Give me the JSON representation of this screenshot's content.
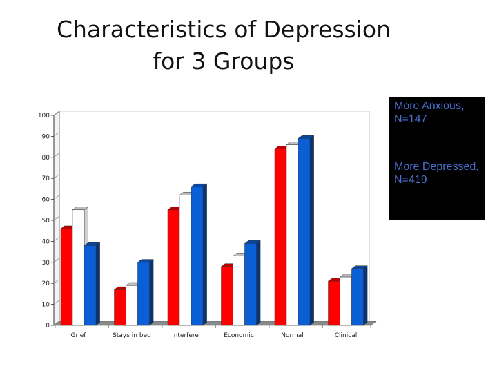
{
  "chart_data": {
    "type": "bar",
    "title_lines": [
      "Characteristics of Depression",
      "for 3 Groups"
    ],
    "categories": [
      "Grief",
      "Stays in bed",
      "Interfere",
      "Economic",
      "Normal",
      "Clinical"
    ],
    "series": [
      {
        "name": "More Anxious, N=147",
        "color": "#ff0000",
        "values": [
          46,
          17,
          55,
          28,
          84,
          21
        ]
      },
      {
        "name": "",
        "color": "#ffffff",
        "values": [
          55,
          19,
          62,
          33,
          86,
          23
        ]
      },
      {
        "name": "More Depressed, N=419",
        "color": "#0a5fd6",
        "values": [
          38,
          30,
          66,
          39,
          89,
          27
        ]
      }
    ],
    "yticks": [
      0,
      10,
      20,
      30,
      40,
      50,
      60,
      70,
      80,
      90,
      100
    ],
    "ylim": [
      0,
      100
    ],
    "legend_position": "right",
    "grid": false
  },
  "legend": [
    {
      "label": "More Anxious, N=147"
    },
    {
      "label": "More Depressed, N=419"
    }
  ]
}
